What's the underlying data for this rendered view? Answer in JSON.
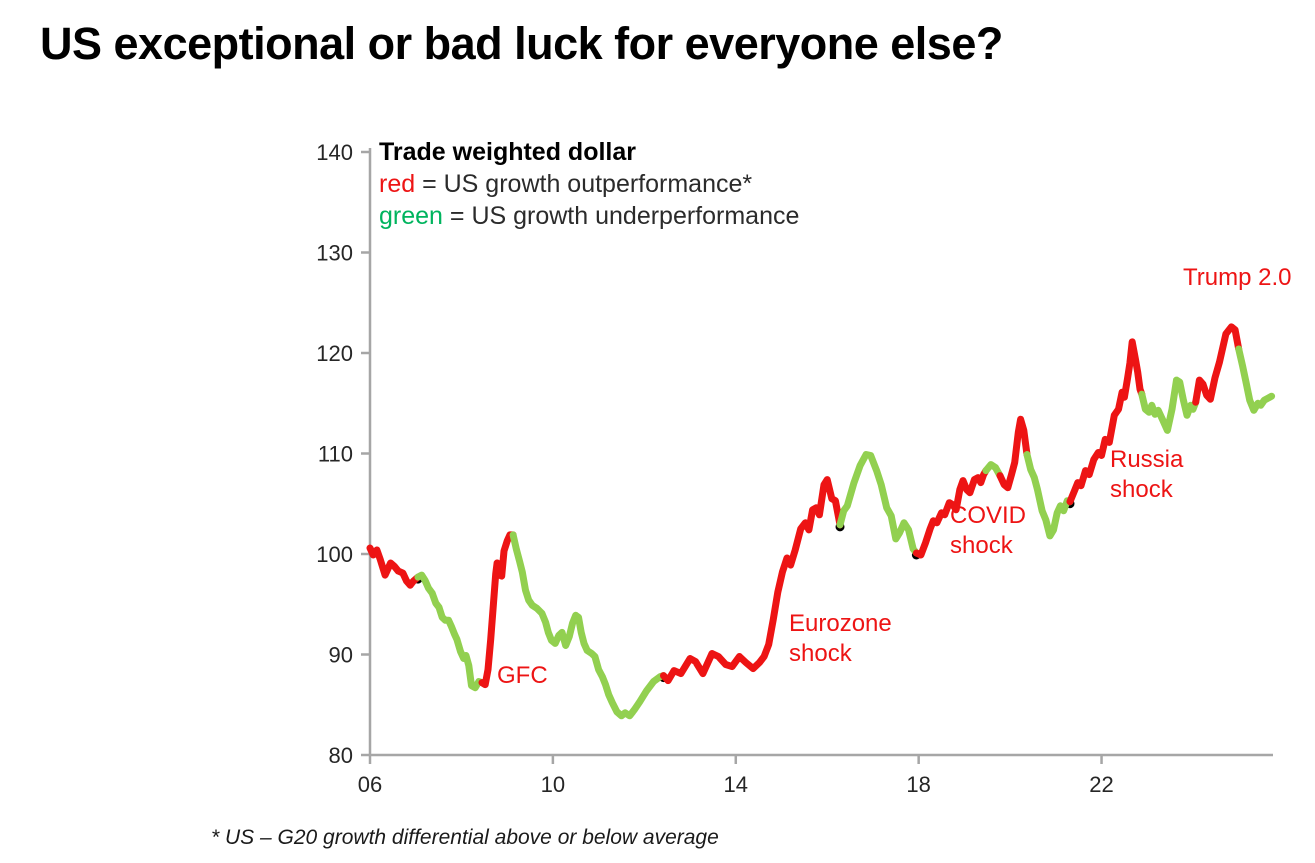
{
  "title": "US exceptional or bad luck for everyone else?",
  "footnote": "* US – G20 growth differential above or below average",
  "chart_data": {
    "type": "line",
    "series_label": "Trade weighted dollar",
    "legend": {
      "title": "Trade weighted dollar",
      "red_word": "red",
      "red_rest": " = US growth outperformance*",
      "green_word": "green",
      "green_rest": " = US growth underperformance",
      "position": "top-left-inside"
    },
    "colors": {
      "outperformance_line": "#ed1414",
      "underperformance_line": "#92d050",
      "legend_green_text": "#00b45e",
      "annotation_text": "#ed1414",
      "axis": "#a6a6a6",
      "tick_text": "#262626"
    },
    "xlabel": "",
    "ylabel": "",
    "xlim": [
      2006,
      2025.75
    ],
    "ylim": [
      80,
      140
    ],
    "grid": false,
    "y_ticks": [
      140,
      130,
      120,
      110,
      100,
      90,
      80
    ],
    "x_ticks": [
      {
        "label": "06",
        "year": 2006
      },
      {
        "label": "10",
        "year": 2010
      },
      {
        "label": "14",
        "year": 2014
      },
      {
        "label": "18",
        "year": 2018
      },
      {
        "label": "22",
        "year": 2022
      }
    ],
    "annotations": [
      {
        "id": "gfc",
        "lines": [
          "GFC"
        ],
        "anchor_year": 2008.8,
        "anchor_value": 88
      },
      {
        "id": "eurozone",
        "lines": [
          "Eurozone",
          "shock"
        ],
        "anchor_year": 2015.2,
        "anchor_value": 92
      },
      {
        "id": "covid",
        "lines": [
          "COVID",
          "shock"
        ],
        "anchor_year": 2018.7,
        "anchor_value": 102
      },
      {
        "id": "russia",
        "lines": [
          "Russia",
          "shock"
        ],
        "anchor_year": 2022.2,
        "anchor_value": 108
      },
      {
        "id": "trump",
        "lines": [
          "Trump 2.0"
        ],
        "anchor_year": 2023.8,
        "anchor_value": 127
      }
    ],
    "joints": [
      [
        2007.05,
        97.7
      ],
      [
        2012.42,
        87.9
      ],
      [
        2016.28,
        102.9
      ],
      [
        2017.95,
        100.1
      ],
      [
        2021.31,
        105.2
      ]
    ],
    "segments": [
      {
        "color": "red",
        "points": [
          [
            2006.0,
            100.6
          ],
          [
            2006.07,
            99.9
          ],
          [
            2006.15,
            100.4
          ],
          [
            2006.22,
            99.5
          ],
          [
            2006.33,
            97.9
          ],
          [
            2006.45,
            99.1
          ],
          [
            2006.53,
            98.8
          ],
          [
            2006.62,
            98.3
          ],
          [
            2006.72,
            98.1
          ],
          [
            2006.8,
            97.3
          ],
          [
            2006.88,
            96.9
          ],
          [
            2006.95,
            97.3
          ],
          [
            2007.05,
            97.7
          ]
        ]
      },
      {
        "color": "green",
        "points": [
          [
            2007.05,
            97.7
          ],
          [
            2007.13,
            97.9
          ],
          [
            2007.2,
            97.4
          ],
          [
            2007.28,
            96.6
          ],
          [
            2007.36,
            96.1
          ],
          [
            2007.44,
            95.1
          ],
          [
            2007.51,
            94.7
          ],
          [
            2007.58,
            93.7
          ],
          [
            2007.65,
            93.4
          ],
          [
            2007.72,
            93.4
          ],
          [
            2007.78,
            92.8
          ],
          [
            2007.85,
            92.0
          ],
          [
            2007.9,
            91.5
          ],
          [
            2007.98,
            90.3
          ],
          [
            2008.05,
            89.6
          ],
          [
            2008.1,
            89.9
          ],
          [
            2008.16,
            88.9
          ],
          [
            2008.22,
            86.9
          ],
          [
            2008.3,
            86.7
          ],
          [
            2008.38,
            87.3
          ],
          [
            2008.45,
            87.2
          ]
        ]
      },
      {
        "color": "red",
        "points": [
          [
            2008.45,
            87.2
          ],
          [
            2008.52,
            87.0
          ],
          [
            2008.58,
            88.5
          ],
          [
            2008.64,
            91.5
          ],
          [
            2008.7,
            95.0
          ],
          [
            2008.75,
            98.0
          ],
          [
            2008.78,
            99.1
          ],
          [
            2008.83,
            97.9
          ],
          [
            2008.88,
            97.8
          ],
          [
            2008.93,
            100.3
          ],
          [
            2009.0,
            101.3
          ],
          [
            2009.06,
            101.9
          ],
          [
            2009.13,
            101.9
          ]
        ]
      },
      {
        "color": "green",
        "points": [
          [
            2009.13,
            101.9
          ],
          [
            2009.2,
            100.5
          ],
          [
            2009.27,
            99.3
          ],
          [
            2009.33,
            98.2
          ],
          [
            2009.4,
            96.4
          ],
          [
            2009.47,
            95.4
          ],
          [
            2009.55,
            94.9
          ],
          [
            2009.65,
            94.6
          ],
          [
            2009.76,
            94.1
          ],
          [
            2009.84,
            93.2
          ],
          [
            2009.9,
            92.2
          ],
          [
            2009.97,
            91.4
          ],
          [
            2010.05,
            91.1
          ],
          [
            2010.13,
            91.9
          ],
          [
            2010.2,
            92.2
          ],
          [
            2010.28,
            90.9
          ],
          [
            2010.36,
            91.8
          ],
          [
            2010.43,
            93.1
          ],
          [
            2010.5,
            93.9
          ],
          [
            2010.56,
            93.7
          ],
          [
            2010.62,
            92.2
          ],
          [
            2010.68,
            91.1
          ],
          [
            2010.75,
            90.4
          ],
          [
            2010.85,
            90.1
          ],
          [
            2010.92,
            89.8
          ],
          [
            2011.0,
            88.5
          ],
          [
            2011.08,
            87.8
          ],
          [
            2011.15,
            87.0
          ],
          [
            2011.22,
            86.0
          ],
          [
            2011.3,
            85.2
          ],
          [
            2011.4,
            84.3
          ],
          [
            2011.5,
            83.9
          ],
          [
            2011.58,
            84.2
          ],
          [
            2011.68,
            83.9
          ],
          [
            2011.78,
            84.5
          ],
          [
            2011.9,
            85.3
          ],
          [
            2012.05,
            86.4
          ],
          [
            2012.2,
            87.3
          ],
          [
            2012.35,
            87.8
          ],
          [
            2012.42,
            87.9
          ]
        ]
      },
      {
        "color": "red",
        "points": [
          [
            2012.42,
            87.9
          ],
          [
            2012.52,
            87.4
          ],
          [
            2012.65,
            88.4
          ],
          [
            2012.8,
            88.1
          ],
          [
            2013.0,
            89.6
          ],
          [
            2013.12,
            89.3
          ],
          [
            2013.28,
            88.1
          ],
          [
            2013.48,
            90.1
          ],
          [
            2013.62,
            89.8
          ],
          [
            2013.78,
            89.0
          ],
          [
            2013.92,
            88.8
          ],
          [
            2014.08,
            89.8
          ],
          [
            2014.22,
            89.2
          ],
          [
            2014.38,
            88.6
          ],
          [
            2014.52,
            89.2
          ],
          [
            2014.62,
            89.8
          ],
          [
            2014.72,
            91.0
          ],
          [
            2014.82,
            93.5
          ],
          [
            2014.92,
            96.2
          ],
          [
            2015.02,
            98.2
          ],
          [
            2015.12,
            99.6
          ],
          [
            2015.2,
            98.9
          ],
          [
            2015.3,
            100.4
          ],
          [
            2015.42,
            102.5
          ],
          [
            2015.52,
            103.1
          ],
          [
            2015.6,
            102.4
          ],
          [
            2015.68,
            104.4
          ],
          [
            2015.76,
            104.6
          ],
          [
            2015.83,
            103.9
          ],
          [
            2015.93,
            106.9
          ],
          [
            2016.0,
            107.4
          ],
          [
            2016.1,
            105.5
          ],
          [
            2016.18,
            105.3
          ],
          [
            2016.28,
            102.9
          ]
        ]
      },
      {
        "color": "green",
        "points": [
          [
            2016.28,
            102.9
          ],
          [
            2016.36,
            104.3
          ],
          [
            2016.44,
            104.8
          ],
          [
            2016.58,
            107.0
          ],
          [
            2016.72,
            108.8
          ],
          [
            2016.85,
            109.9
          ],
          [
            2016.95,
            109.8
          ],
          [
            2017.08,
            108.3
          ],
          [
            2017.18,
            106.9
          ],
          [
            2017.3,
            104.6
          ],
          [
            2017.4,
            103.8
          ],
          [
            2017.5,
            101.5
          ],
          [
            2017.58,
            102.1
          ],
          [
            2017.68,
            103.1
          ],
          [
            2017.78,
            102.4
          ],
          [
            2017.88,
            100.5
          ],
          [
            2017.95,
            100.1
          ]
        ]
      },
      {
        "color": "red",
        "points": [
          [
            2017.95,
            100.1
          ],
          [
            2018.05,
            99.9
          ],
          [
            2018.15,
            101.1
          ],
          [
            2018.25,
            102.5
          ],
          [
            2018.32,
            103.3
          ],
          [
            2018.4,
            103.1
          ],
          [
            2018.5,
            104.1
          ],
          [
            2018.57,
            103.9
          ],
          [
            2018.67,
            105.1
          ],
          [
            2018.75,
            104.9
          ],
          [
            2018.82,
            104.4
          ],
          [
            2018.9,
            106.4
          ],
          [
            2018.97,
            107.3
          ],
          [
            2019.05,
            106.4
          ],
          [
            2019.12,
            106.1
          ],
          [
            2019.22,
            107.4
          ],
          [
            2019.3,
            107.6
          ],
          [
            2019.36,
            107.1
          ],
          [
            2019.42,
            107.9
          ],
          [
            2019.47,
            108.3
          ]
        ]
      },
      {
        "color": "green",
        "points": [
          [
            2019.47,
            108.3
          ],
          [
            2019.58,
            108.9
          ],
          [
            2019.68,
            108.6
          ],
          [
            2019.78,
            107.8
          ]
        ]
      },
      {
        "color": "red",
        "points": [
          [
            2019.78,
            107.8
          ],
          [
            2019.87,
            106.9
          ],
          [
            2019.95,
            106.6
          ],
          [
            2020.03,
            107.9
          ],
          [
            2020.1,
            109.1
          ],
          [
            2020.18,
            112.1
          ],
          [
            2020.23,
            113.4
          ],
          [
            2020.3,
            112.3
          ],
          [
            2020.37,
            109.9
          ]
        ]
      },
      {
        "color": "green",
        "points": [
          [
            2020.37,
            109.9
          ],
          [
            2020.45,
            108.4
          ],
          [
            2020.53,
            107.6
          ],
          [
            2020.6,
            106.4
          ],
          [
            2020.7,
            104.3
          ],
          [
            2020.78,
            103.4
          ],
          [
            2020.87,
            101.8
          ],
          [
            2020.95,
            102.4
          ],
          [
            2021.03,
            104.1
          ],
          [
            2021.1,
            104.8
          ],
          [
            2021.17,
            104.3
          ],
          [
            2021.25,
            105.3
          ],
          [
            2021.31,
            105.2
          ]
        ]
      },
      {
        "color": "red",
        "points": [
          [
            2021.31,
            105.2
          ],
          [
            2021.4,
            106.2
          ],
          [
            2021.48,
            107.1
          ],
          [
            2021.55,
            106.8
          ],
          [
            2021.65,
            108.3
          ],
          [
            2021.73,
            107.9
          ],
          [
            2021.83,
            109.4
          ],
          [
            2021.93,
            110.1
          ],
          [
            2022.0,
            109.8
          ],
          [
            2022.08,
            111.4
          ],
          [
            2022.17,
            111.1
          ],
          [
            2022.28,
            113.8
          ],
          [
            2022.37,
            114.4
          ],
          [
            2022.45,
            116.1
          ],
          [
            2022.5,
            115.6
          ],
          [
            2022.57,
            117.5
          ],
          [
            2022.62,
            119.0
          ],
          [
            2022.67,
            121.1
          ],
          [
            2022.74,
            119.4
          ],
          [
            2022.79,
            118.1
          ],
          [
            2022.84,
            116.4
          ],
          [
            2022.88,
            115.9
          ]
        ]
      },
      {
        "color": "green",
        "points": [
          [
            2022.88,
            115.9
          ],
          [
            2022.96,
            114.4
          ],
          [
            2023.04,
            114.1
          ],
          [
            2023.1,
            114.8
          ],
          [
            2023.17,
            113.9
          ],
          [
            2023.24,
            114.3
          ],
          [
            2023.33,
            113.4
          ],
          [
            2023.44,
            112.3
          ],
          [
            2023.54,
            114.4
          ],
          [
            2023.64,
            117.3
          ],
          [
            2023.71,
            117.1
          ],
          [
            2023.79,
            115.3
          ],
          [
            2023.87,
            113.8
          ],
          [
            2023.95,
            114.8
          ],
          [
            2024.0,
            114.4
          ],
          [
            2024.06,
            115.1
          ]
        ]
      },
      {
        "color": "red",
        "points": [
          [
            2024.06,
            115.1
          ],
          [
            2024.14,
            117.3
          ],
          [
            2024.22,
            116.9
          ],
          [
            2024.3,
            115.8
          ],
          [
            2024.38,
            115.4
          ],
          [
            2024.48,
            117.5
          ],
          [
            2024.58,
            119.1
          ],
          [
            2024.72,
            121.9
          ],
          [
            2024.84,
            122.6
          ],
          [
            2024.92,
            122.3
          ],
          [
            2025.0,
            120.4
          ]
        ]
      },
      {
        "color": "green",
        "points": [
          [
            2025.0,
            120.4
          ],
          [
            2025.08,
            118.8
          ],
          [
            2025.16,
            117.1
          ],
          [
            2025.24,
            115.3
          ],
          [
            2025.33,
            114.3
          ],
          [
            2025.42,
            115.0
          ],
          [
            2025.48,
            114.8
          ],
          [
            2025.56,
            115.3
          ],
          [
            2025.64,
            115.5
          ],
          [
            2025.72,
            115.7
          ]
        ]
      }
    ]
  }
}
